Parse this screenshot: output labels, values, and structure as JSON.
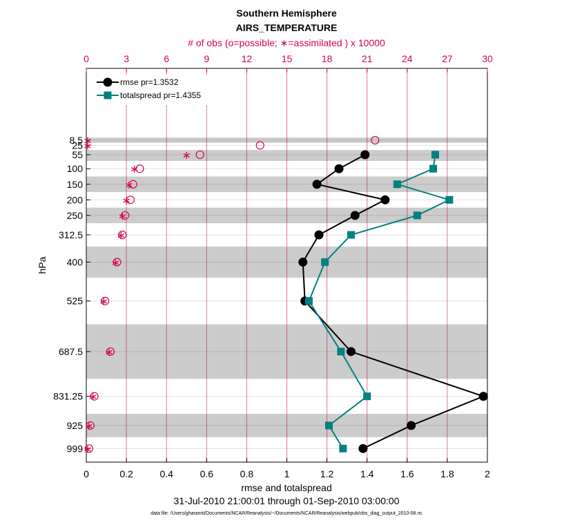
{
  "chart_data": {
    "type": "line",
    "title": "Southern Hemisphere",
    "subtitle": "AIRS_TEMPERATURE",
    "xlabel": "rmse and totalspread",
    "top_xlabel": "# of obs (o=possible; ∗=assimilated ) x 10000",
    "ylabel": "hPa",
    "date_range": "31-Jul-2010 21:00:01 through 01-Sep-2010 03:00:00",
    "footnote": "data file: /Users/gharamti/Documents/NCAR/Reanalysis/~/Documents/NCAR/Reanalysis/webpub/obs_diag_output_2010-08.nc",
    "xlim": [
      0,
      2
    ],
    "top_xlim": [
      0,
      30
    ],
    "x_ticks": [
      "0",
      "0.2",
      "0.4",
      "0.6",
      "0.8",
      "1",
      "1.2",
      "1.4",
      "1.6",
      "1.8",
      "2"
    ],
    "top_ticks": [
      "0",
      "3",
      "6",
      "9",
      "12",
      "15",
      "18",
      "21",
      "24",
      "27",
      "30"
    ],
    "levels": [
      "8.5",
      "25",
      "55",
      "100",
      "150",
      "200",
      "250",
      "312.5",
      "400",
      "525",
      "687.5",
      "831.25",
      "925",
      "999"
    ],
    "level_values": [
      8.5,
      25,
      55,
      100,
      150,
      200,
      250,
      312.5,
      400,
      525,
      687.5,
      831.25,
      925,
      999
    ],
    "band_edges": [
      [
        0,
        17
      ],
      [
        40,
        75
      ],
      [
        125,
        175
      ],
      [
        225,
        275
      ],
      [
        350,
        450
      ],
      [
        600,
        775
      ],
      [
        887.5,
        962.5
      ]
    ],
    "series": [
      {
        "name": "rmse pr=1.3532",
        "color": "#000000",
        "marker": "circle",
        "values": [
          null,
          null,
          1.39,
          1.26,
          1.15,
          1.49,
          1.34,
          1.16,
          1.08,
          1.09,
          1.32,
          1.98,
          1.62,
          1.38
        ]
      },
      {
        "name": "totalspread pr=1.4355",
        "color": "#008080",
        "marker": "square",
        "values": [
          null,
          null,
          1.74,
          1.73,
          1.55,
          1.81,
          1.65,
          1.32,
          1.19,
          1.11,
          1.27,
          1.4,
          1.21,
          1.28
        ]
      }
    ],
    "obs_possible": [
      21.6,
      13.0,
      8.5,
      4.0,
      3.5,
      3.3,
      2.9,
      2.7,
      2.3,
      1.4,
      1.8,
      0.6,
      0.3,
      0.2
    ],
    "obs_assimilated": [
      0.1,
      0.1,
      7.5,
      3.6,
      3.2,
      3.0,
      2.7,
      2.6,
      2.2,
      1.3,
      1.7,
      0.5,
      0.2,
      0.1
    ]
  }
}
